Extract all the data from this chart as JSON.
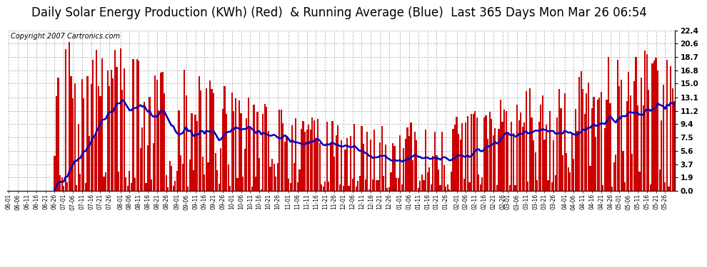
{
  "title": "Daily Solar Energy Production (KWh) (Red)  & Running Average (Blue)  Last 365 Days Mon Mar 26 06:54",
  "copyright": "Copyright 2007 Cartronics.com",
  "bar_color": "#cc0000",
  "line_color": "#0000bb",
  "background_color": "#ffffff",
  "grid_color": "#bbbbbb",
  "yticks": [
    0.0,
    1.9,
    3.7,
    5.6,
    7.5,
    9.4,
    11.2,
    13.1,
    15.0,
    16.8,
    18.7,
    20.6,
    22.4
  ],
  "ymax": 22.4,
  "ymin": 0.0,
  "title_fontsize": 12,
  "copyright_fontsize": 7
}
